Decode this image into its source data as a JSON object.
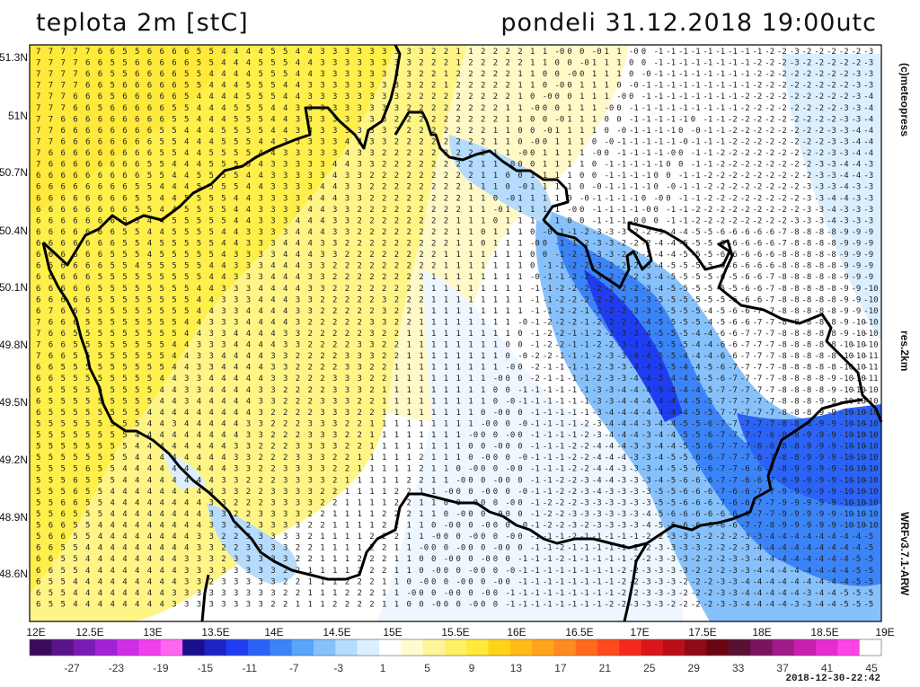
{
  "header": {
    "title": "teplota 2m [stC]",
    "valid_time": "pondeli 31.12.2018 19:00utc"
  },
  "side_labels": {
    "copyright": "(c)meteopress",
    "resolution": "res.2km",
    "model": "WRFv3.7.1-ARW"
  },
  "axes": {
    "lat_labels": [
      "51.3N",
      "51N",
      "50.7N",
      "50.4N",
      "50.1N",
      "49.8N",
      "49.5N",
      "49.2N",
      "48.9N",
      "48.6N"
    ],
    "lon_labels": [
      "12E",
      "12.5E",
      "13E",
      "13.5E",
      "14E",
      "14.5E",
      "15E",
      "15.5E",
      "16E",
      "16.5E",
      "17E",
      "17.5E",
      "18E",
      "18.5E",
      "19E"
    ]
  },
  "colorscale": {
    "labels": [
      "-27",
      "-23",
      "-19",
      "-15",
      "-11",
      "-7",
      "-3",
      "1",
      "5",
      "9",
      "13",
      "17",
      "21",
      "25",
      "29",
      "33",
      "37",
      "41",
      "45"
    ],
    "colors": [
      "#3a0a5c",
      "#5a1388",
      "#7a1ab4",
      "#a322d6",
      "#cf2ee6",
      "#f03fef",
      "#ff66f0",
      "#1a0f8c",
      "#1f23c7",
      "#1f3df0",
      "#2a63f5",
      "#3b84f7",
      "#5aa4fa",
      "#86c1fb",
      "#b5dcfd",
      "#dcefff",
      "#ffffff",
      "#fffbd0",
      "#fff49a",
      "#fff066",
      "#ffe93a",
      "#ffd31a",
      "#ffbc17",
      "#ffa31a",
      "#ff8a1f",
      "#ff6a1f",
      "#ff4a1f",
      "#f42a1f",
      "#d8161c",
      "#b80f1a",
      "#8e0a17",
      "#6a0614",
      "#5a1032",
      "#7a1460",
      "#a11a8a",
      "#c81fb0",
      "#e62cd0",
      "#ff44e6",
      "#ffffff"
    ]
  },
  "timestamp": "2018-12-30-22:42"
}
